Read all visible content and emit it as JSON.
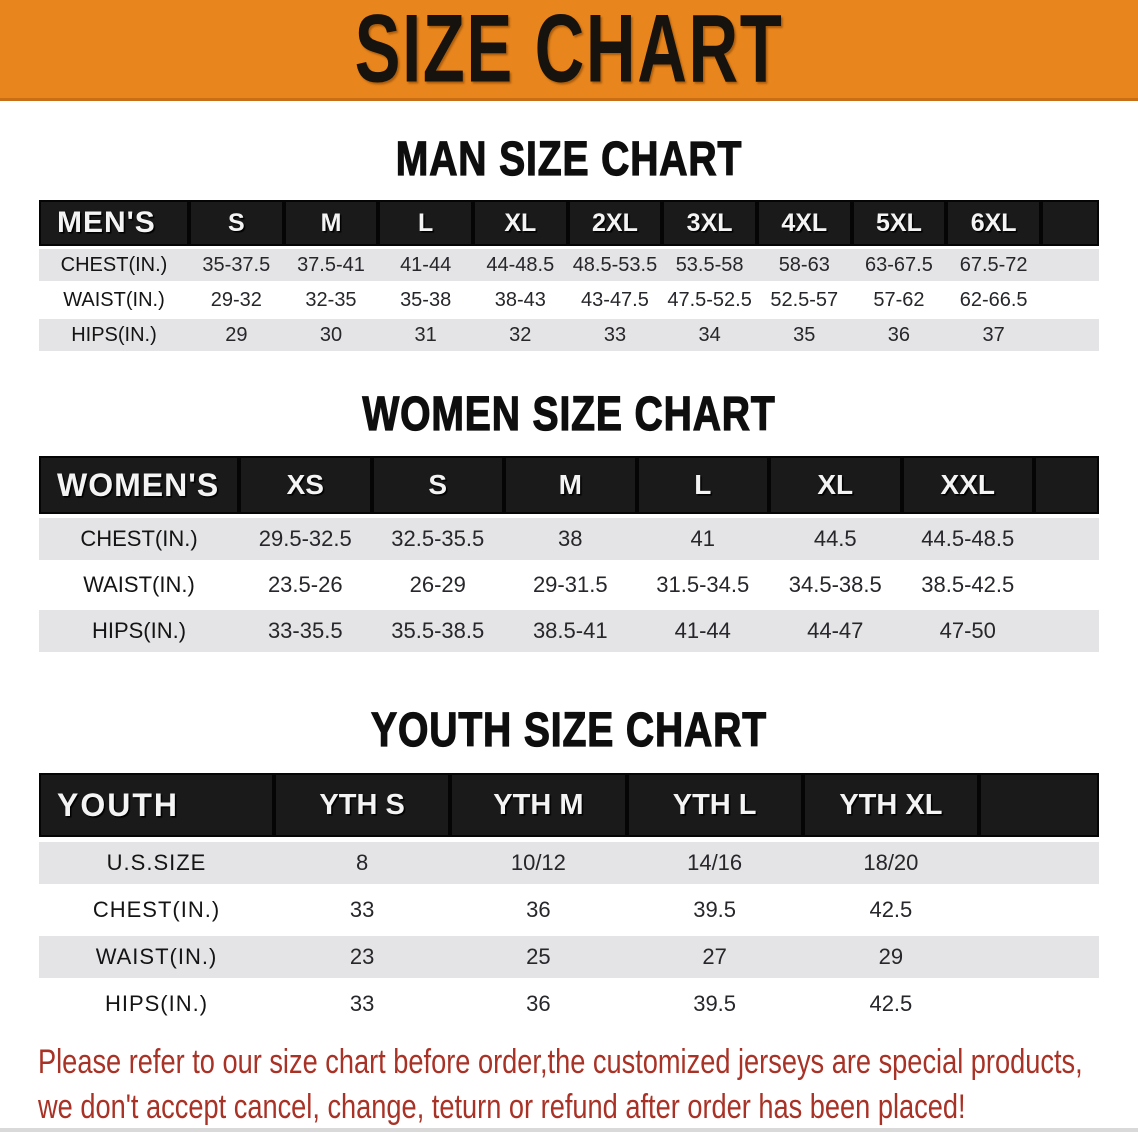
{
  "banner": {
    "title": "SIZE CHART",
    "bg_color": "#E8851C",
    "text_color": "#16120E"
  },
  "colors": {
    "table_header_bar": "#1A1A1A",
    "row_stripe_gray": "#E4E4E6",
    "disclaimer_red": "#A93226"
  },
  "sections": [
    {
      "heading": "MAN SIZE CHART",
      "table": {
        "label": "MEN'S",
        "columns": [
          "S",
          "M",
          "L",
          "XL",
          "2XL",
          "3XL",
          "4XL",
          "5XL",
          "6XL"
        ],
        "rows": [
          {
            "label": "CHEST(IN.)",
            "values": [
              "35-37.5",
              "37.5-41",
              "41-44",
              "44-48.5",
              "48.5-53.5",
              "53.5-58",
              "58-63",
              "63-67.5",
              "67.5-72"
            ]
          },
          {
            "label": "WAIST(IN.)",
            "values": [
              "29-32",
              "32-35",
              "35-38",
              "38-43",
              "43-47.5",
              "47.5-52.5",
              "52.5-57",
              "57-62",
              "62-66.5"
            ]
          },
          {
            "label": "HIPS(IN.)",
            "values": [
              "29",
              "30",
              "31",
              "32",
              "33",
              "34",
              "35",
              "36",
              "37"
            ]
          }
        ]
      }
    },
    {
      "heading": "WOMEN SIZE CHART",
      "table": {
        "label": "WOMEN'S",
        "columns": [
          "XS",
          "S",
          "M",
          "L",
          "XL",
          "XXL"
        ],
        "rows": [
          {
            "label": "CHEST(IN.)",
            "values": [
              "29.5-32.5",
              "32.5-35.5",
              "38",
              "41",
              "44.5",
              "44.5-48.5"
            ]
          },
          {
            "label": "WAIST(IN.)",
            "values": [
              "23.5-26",
              "26-29",
              "29-31.5",
              "31.5-34.5",
              "34.5-38.5",
              "38.5-42.5"
            ]
          },
          {
            "label": "HIPS(IN.)",
            "values": [
              "33-35.5",
              "35.5-38.5",
              "38.5-41",
              "41-44",
              "44-47",
              "47-50"
            ]
          }
        ]
      }
    },
    {
      "heading": "YOUTH SIZE CHART",
      "table": {
        "label": "YOUTH",
        "columns": [
          "YTH S",
          "YTH M",
          "YTH L",
          "YTH XL"
        ],
        "rows": [
          {
            "label": "U.S.SIZE",
            "values": [
              "8",
              "10/12",
              "14/16",
              "18/20"
            ]
          },
          {
            "label": "CHEST(IN.)",
            "values": [
              "33",
              "36",
              "39.5",
              "42.5"
            ]
          },
          {
            "label": "WAIST(IN.)",
            "values": [
              "23",
              "25",
              "27",
              "29"
            ]
          },
          {
            "label": "HIPS(IN.)",
            "values": [
              "33",
              "36",
              "39.5",
              "42.5"
            ]
          }
        ]
      }
    }
  ],
  "disclaimer": {
    "line1": "Please refer to our size chart before order,the customized jerseys are special products,",
    "line2": "we don't accept cancel, change, teturn or refund after order has been placed!"
  }
}
